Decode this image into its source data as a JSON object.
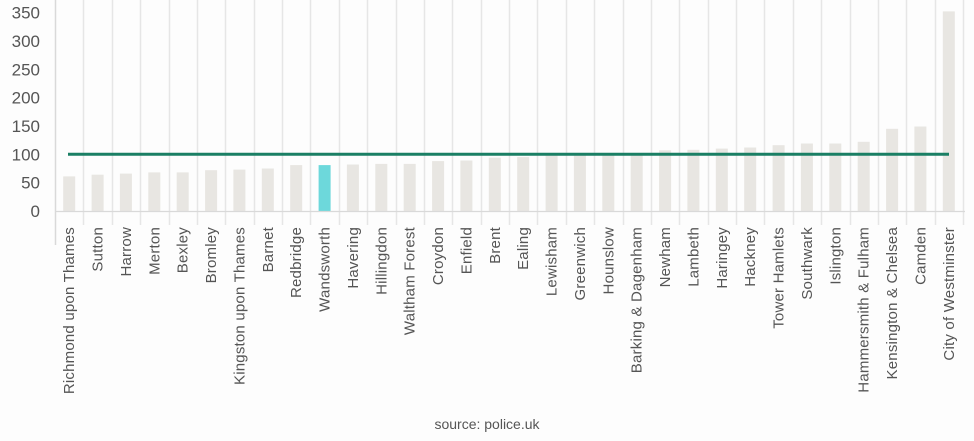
{
  "source_text": "source: police.uk",
  "colors": {
    "bar": "#e8e6e2",
    "highlight_bar": "#6dd8db",
    "reference_line": "#1a7f64",
    "gridline": "#e6e6e6",
    "axis": "#d9d9d9",
    "text": "#555555"
  },
  "chart_data": {
    "type": "bar",
    "title": "",
    "xlabel": "",
    "ylabel": "",
    "ylim": [
      0,
      360
    ],
    "yticks": [
      0,
      50,
      100,
      150,
      200,
      250,
      300,
      350
    ],
    "grid": "vertical",
    "legend": "none",
    "highlight_category": "Wandsworth",
    "reference_line": {
      "value": 100,
      "label": ""
    },
    "categories": [
      "Richmond upon Thames",
      "Sutton",
      "Harrow",
      "Merton",
      "Bexley",
      "Bromley",
      "Kingston upon Thames",
      "Barnet",
      "Redbridge",
      "Wandsworth",
      "Havering",
      "Hillingdon",
      "Waltham Forest",
      "Croydon",
      "Enfield",
      "Brent",
      "Ealing",
      "Lewisham",
      "Greenwich",
      "Hounslow",
      "Barking & Dagenham",
      "Newham",
      "Lambeth",
      "Haringey",
      "Hackney",
      "Tower Hamlets",
      "Southwark",
      "Islington",
      "Hammersmith & Fulham",
      "Kensington & Chelsea",
      "Camden",
      "City of Westminster"
    ],
    "values": [
      61,
      64,
      66,
      68,
      68,
      72,
      73,
      75,
      81,
      81,
      82,
      83,
      83,
      88,
      89,
      94,
      95,
      98,
      98,
      99,
      99,
      107,
      108,
      110,
      112,
      116,
      119,
      119,
      122,
      145,
      149,
      352
    ],
    "source": "source: police.uk"
  }
}
